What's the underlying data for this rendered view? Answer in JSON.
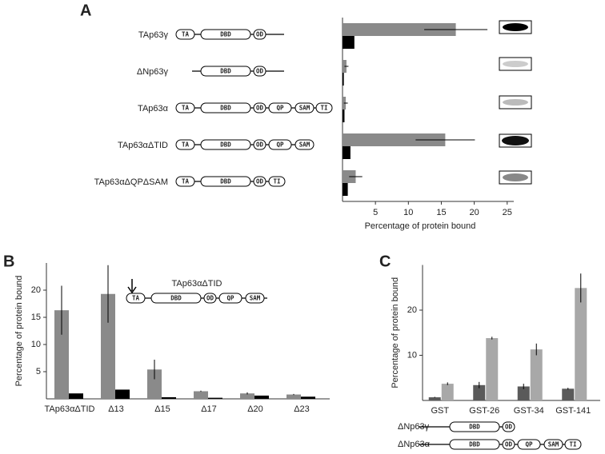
{
  "panel_labels": [
    "A",
    "B",
    "C"
  ],
  "chart_data": [
    {
      "type": "bar",
      "orientation": "horizontal",
      "categories": [
        "TAp63γ",
        "ΔNp63γ",
        "TAp63α",
        "TAp63αΔTID",
        "TAp63αΔQPΔSAM"
      ],
      "series": [
        {
          "color": "#8a8a8a",
          "values": [
            17.2,
            0.6,
            0.5,
            15.6,
            2
          ],
          "errors": [
            4.8,
            0.3,
            0.3,
            4.5,
            1
          ]
        },
        {
          "color": "#000000",
          "values": [
            1.8,
            0.2,
            0.3,
            1.2,
            0.8
          ]
        }
      ],
      "xlim": [
        0,
        26
      ],
      "xticks": [
        5,
        10,
        15,
        20,
        25
      ],
      "xlabel": "Percentage of protein bound"
    },
    {
      "type": "bar",
      "orientation": "vertical",
      "categories": [
        "TAp63αΔTID",
        "Δ13",
        "Δ15",
        "Δ17",
        "Δ20",
        "Δ23"
      ],
      "series": [
        {
          "color": "#8a8a8a",
          "values": [
            16.3,
            19.3,
            5.4,
            1.4,
            1,
            0.8
          ],
          "errors": [
            4.5,
            5.3,
            1.8,
            0.1,
            0.2,
            0.1
          ]
        },
        {
          "color": "#000000",
          "values": [
            1,
            1.7,
            0.3,
            0.2,
            0.6,
            0.4
          ]
        }
      ],
      "ylim": [
        0,
        25
      ],
      "yticks": [
        5,
        10,
        15,
        20
      ],
      "ylabel": "Percentage of protein bound"
    },
    {
      "type": "bar",
      "orientation": "vertical",
      "categories": [
        "GST",
        "GST-26",
        "GST-34",
        "GST-141"
      ],
      "series": [
        {
          "color": "#5a5a5a",
          "values": [
            0.7,
            3.4,
            3.1,
            2.6
          ],
          "errors": [
            0.1,
            0.7,
            0.6,
            0.2
          ]
        },
        {
          "color": "#a8a8a8",
          "values": [
            3.7,
            13.8,
            11.3,
            24.9
          ],
          "errors": [
            0.3,
            0.3,
            1.3,
            3.2
          ]
        }
      ],
      "ylim": [
        0,
        30
      ],
      "yticks": [
        10,
        20
      ],
      "ylabel": "Percentage of protein bound"
    }
  ],
  "constructs": {
    "a": [
      {
        "domains": [
          "TA",
          "DBD",
          "OD"
        ]
      },
      {
        "domains": [
          "DBD",
          "OD"
        ]
      },
      {
        "domains": [
          "TA",
          "DBD",
          "OD",
          "QP",
          "SAM",
          "TI"
        ]
      },
      {
        "domains": [
          "TA",
          "DBD",
          "OD",
          "QP",
          "SAM"
        ]
      },
      {
        "domains": [
          "TA",
          "DBD",
          "OD",
          "TI"
        ]
      }
    ],
    "b": {
      "name": "TAp63αΔTID",
      "domains": [
        "TA",
        "DBD",
        "OD",
        "QP",
        "SAM"
      ]
    },
    "c": [
      {
        "name": "ΔNp63γ",
        "domains": [
          "DBD",
          "OD"
        ]
      },
      {
        "name": "ΔNp63α",
        "domains": [
          "DBD",
          "OD",
          "QP",
          "SAM",
          "TI"
        ]
      }
    ]
  }
}
